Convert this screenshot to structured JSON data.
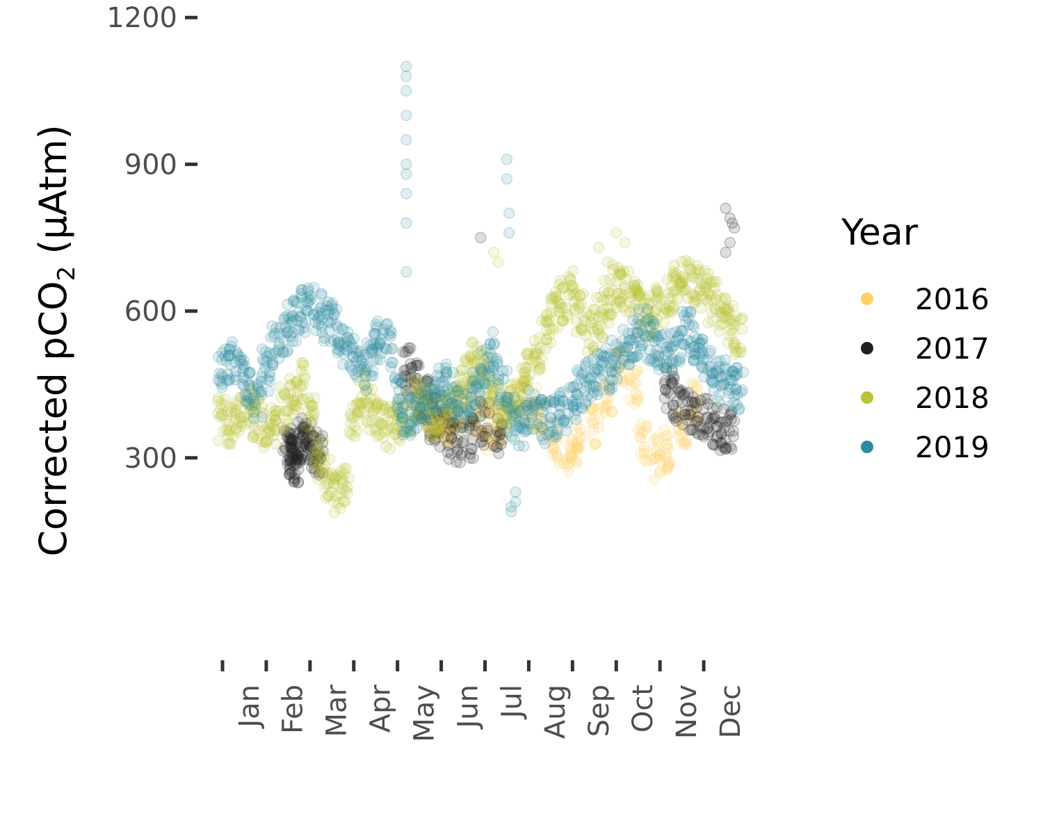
{
  "chart_data": {
    "type": "scatter",
    "ylabel_prefix": "Corrected pCO",
    "ylabel_sub": "2",
    "ylabel_suffix": " (µAtm)",
    "xlabel": "",
    "ylim": [
      0,
      1250
    ],
    "y_ticks": [
      300,
      600,
      900,
      1200
    ],
    "x_ticks": [
      "Jan",
      "Feb",
      "Mar",
      "Apr",
      "May",
      "Jun",
      "Jul",
      "Aug",
      "Sep",
      "Oct",
      "Nov",
      "Dec"
    ],
    "legend": {
      "title": "Year",
      "position": "right"
    },
    "point_alpha": 0.15,
    "series": [
      {
        "name": "2016",
        "color": "#FDD262",
        "x": [
          4.5,
          4.7,
          4.9,
          5.1,
          5.3,
          5.5,
          5.7,
          5.9,
          6.1,
          6.3,
          6.5,
          6.8,
          7.1,
          7.3,
          7.6,
          7.9,
          8.2,
          8.5,
          8.8,
          9.1,
          9.4,
          9.6,
          9.9,
          10.2,
          10.5,
          10.8
        ],
        "y": [
          420,
          400,
          380,
          370,
          380,
          400,
          390,
          380,
          360,
          370,
          390,
          420,
          400,
          380,
          330,
          310,
          330,
          360,
          420,
          480,
          440,
          330,
          300,
          320,
          360,
          420
        ]
      },
      {
        "name": "2017",
        "color": "#202020",
        "x": [
          1.5,
          1.55,
          1.6,
          1.65,
          1.7,
          1.8,
          1.9,
          2.0,
          2.1,
          2.2,
          4.2,
          4.4,
          4.6,
          4.8,
          5.0,
          5.2,
          5.4,
          5.7,
          6.0,
          6.3,
          10.2,
          10.4,
          10.6,
          10.8,
          11.0,
          11.2,
          11.4,
          11.6
        ],
        "y": [
          320,
          310,
          300,
          290,
          310,
          330,
          340,
          330,
          320,
          310,
          480,
          450,
          420,
          380,
          360,
          340,
          330,
          340,
          370,
          350,
          440,
          420,
          400,
          390,
          380,
          370,
          360,
          350
        ]
      },
      {
        "name": "2018",
        "color": "#B9C235",
        "x": [
          0.0,
          0.2,
          0.4,
          0.6,
          0.8,
          1.0,
          1.2,
          1.4,
          1.6,
          1.8,
          2.0,
          2.2,
          2.4,
          2.6,
          2.8,
          3.0,
          3.2,
          3.4,
          3.6,
          3.8,
          4.0,
          4.2,
          4.4,
          4.6,
          4.8,
          5.0,
          5.2,
          5.4,
          5.6,
          5.8,
          6.0,
          6.2,
          6.4,
          6.6,
          6.8,
          7.0,
          7.2,
          7.4,
          7.6,
          7.8,
          8.0,
          8.2,
          8.4,
          8.6,
          8.8,
          9.0,
          9.2,
          9.4,
          9.6,
          9.8,
          10.0,
          10.2,
          10.4,
          10.6,
          10.8,
          11.0,
          11.2,
          11.4,
          11.6,
          11.8
        ],
        "y": [
          380,
          360,
          390,
          410,
          380,
          360,
          370,
          400,
          430,
          450,
          380,
          300,
          260,
          230,
          240,
          380,
          430,
          400,
          380,
          360,
          370,
          390,
          420,
          400,
          380,
          390,
          410,
          440,
          470,
          500,
          470,
          430,
          400,
          410,
          440,
          470,
          520,
          560,
          600,
          620,
          640,
          600,
          560,
          590,
          620,
          650,
          640,
          620,
          600,
          590,
          610,
          640,
          650,
          660,
          650,
          640,
          620,
          590,
          570,
          550
        ]
      },
      {
        "name": "2019",
        "color": "#2E8B9E",
        "x": [
          0.0,
          0.2,
          0.4,
          0.6,
          0.8,
          1.0,
          1.2,
          1.4,
          1.6,
          1.8,
          2.0,
          2.2,
          2.4,
          2.6,
          2.8,
          3.0,
          3.2,
          3.4,
          3.6,
          3.8,
          4.0,
          4.2,
          4.4,
          4.6,
          4.8,
          5.0,
          5.2,
          5.4,
          5.6,
          5.8,
          6.0,
          6.2,
          6.4,
          6.6,
          6.8,
          7.0,
          7.2,
          7.4,
          7.6,
          7.8,
          8.0,
          8.2,
          8.4,
          8.6,
          8.8,
          9.0,
          9.2,
          9.4,
          9.6,
          9.8,
          10.0,
          10.2,
          10.4,
          10.6,
          10.8,
          11.0,
          11.2,
          11.4,
          11.6,
          11.8
        ],
        "y": [
          480,
          500,
          470,
          450,
          420,
          480,
          530,
          560,
          580,
          600,
          610,
          600,
          580,
          560,
          530,
          500,
          480,
          510,
          540,
          530,
          420,
          390,
          400,
          410,
          430,
          440,
          450,
          420,
          400,
          430,
          480,
          520,
          450,
          380,
          360,
          400,
          390,
          370,
          380,
          400,
          420,
          440,
          460,
          470,
          480,
          500,
          520,
          540,
          560,
          540,
          520,
          510,
          530,
          560,
          540,
          500,
          480,
          460,
          450,
          440
        ]
      }
    ],
    "outliers": {
      "2019": {
        "x": [
          4.2,
          4.2,
          4.2,
          4.2,
          4.2,
          4.2,
          4.2,
          4.2,
          4.2,
          4.2,
          6.5,
          6.5,
          6.55,
          6.55,
          6.6,
          6.6,
          6.7,
          6.7
        ],
        "y": [
          1100,
          1080,
          1050,
          1000,
          950,
          900,
          880,
          840,
          780,
          680,
          910,
          870,
          800,
          760,
          190,
          200,
          210,
          230
        ]
      },
      "2018": {
        "x": [
          6.2,
          6.3,
          9.0,
          9.2,
          8.6,
          8.8
        ],
        "y": [
          720,
          700,
          760,
          740,
          730,
          700
        ]
      },
      "2017": {
        "x": [
          11.5,
          11.6,
          11.65,
          11.7,
          11.6,
          11.5,
          5.9
        ],
        "y": [
          810,
          790,
          780,
          770,
          740,
          720,
          750
        ]
      }
    }
  }
}
